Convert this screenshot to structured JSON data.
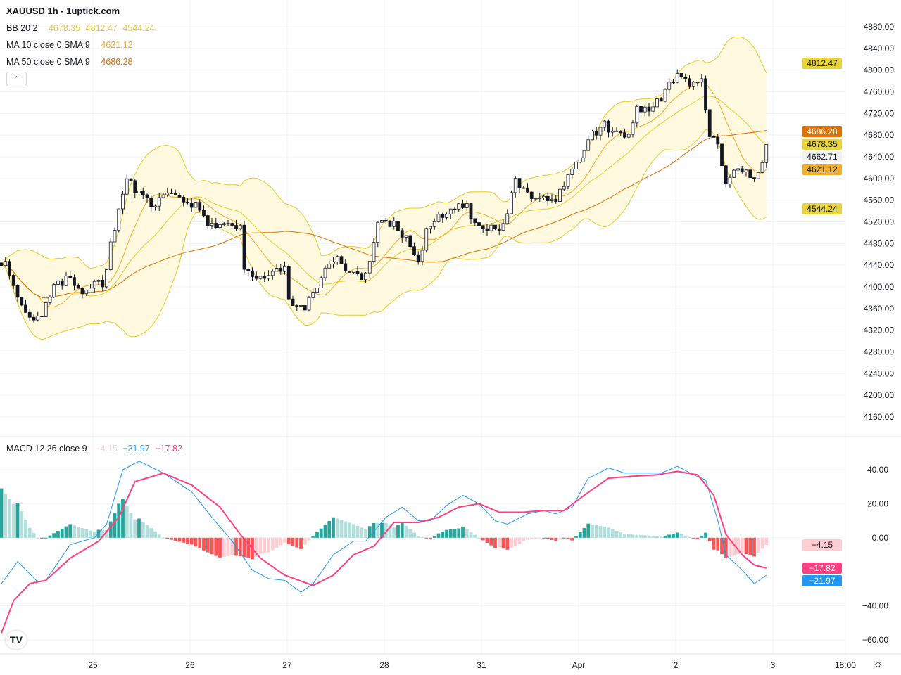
{
  "header": {
    "title": "XAUUSD 1h - 1uptick.com"
  },
  "legend": {
    "bb": {
      "label": "BB 20 2",
      "basis": "4678.35",
      "upper": "4812.47",
      "lower": "4544.24"
    },
    "ma10": {
      "label": "MA 10 close 0 SMA 9",
      "value": "4621.12"
    },
    "ma50": {
      "label": "MA 50 close 0 SMA 9",
      "value": "4686.28"
    },
    "macd": {
      "label": "MACD 12 26 close 9",
      "hist": "−4.15",
      "macd": "−21.97",
      "signal": "−17.82"
    },
    "collapse_icon": "chevron-up-icon"
  },
  "colors": {
    "bb": "#e8c92a",
    "bb_fill": "#fff9e0",
    "ma10": "#f5a623",
    "ma50": "#e07000",
    "macd": "#2196f3",
    "signal": "#ff4081",
    "hist_up_strong": "#26a69a",
    "hist_up_weak": "#b2dfdb",
    "hist_dn_strong": "#ff5252",
    "hist_dn_weak": "#ffcdd2",
    "candle_up": "#ffffff",
    "candle_down": "#131722"
  },
  "price_tags": [
    {
      "value": 4812.47,
      "text": "4812.47",
      "bg": "#e8d33a",
      "fg": "#131722"
    },
    {
      "value": 4686.28,
      "text": "4686.28",
      "bg": "#e07000",
      "fg": "#ffffff"
    },
    {
      "value": 4678.35,
      "text": "4678.35",
      "bg": "#e8d33a",
      "fg": "#131722"
    },
    {
      "value": 4662.71,
      "text": "4662.71",
      "bg": "#f2f2f2",
      "fg": "#131722"
    },
    {
      "value": 4621.12,
      "text": "4621.12",
      "bg": "#f5b02a",
      "fg": "#131722"
    },
    {
      "value": 4544.24,
      "text": "4544.24",
      "bg": "#e8d33a",
      "fg": "#131722"
    }
  ],
  "macd_tags": [
    {
      "value": -4.15,
      "text": "−4.15",
      "bg": "#ffcdd2",
      "fg": "#131722"
    },
    {
      "value": -17.82,
      "text": "−17.82",
      "bg": "#ff4081",
      "fg": "#ffffff"
    },
    {
      "value": -21.97,
      "text": "−21.97",
      "bg": "#2196f3",
      "fg": "#ffffff"
    }
  ],
  "chart_data": [
    {
      "type": "candlestick",
      "title": "XAUUSD 1h",
      "ylim": [
        4160,
        4880
      ],
      "y_ticks": [
        "4880.00",
        "4840.00",
        "4800.00",
        "4760.00",
        "4720.00",
        "4680.00",
        "4640.00",
        "4600.00",
        "4560.00",
        "4520.00",
        "4480.00",
        "4440.00",
        "4400.00",
        "4360.00",
        "4320.00",
        "4280.00",
        "4240.00",
        "4200.00",
        "4160.00"
      ],
      "x_ticks": [
        {
          "bar": 22.6,
          "label": "25"
        },
        {
          "bar": 46.6,
          "label": "26"
        },
        {
          "bar": 70.6,
          "label": "27"
        },
        {
          "bar": 94.6,
          "label": "28"
        },
        {
          "bar": 118.6,
          "label": "31"
        },
        {
          "bar": 142.6,
          "label": "Apr"
        },
        {
          "bar": 166.6,
          "label": "2"
        },
        {
          "bar": 190.6,
          "label": "3"
        },
        {
          "bar": 208.5,
          "label": "18:00"
        }
      ],
      "bars": 190,
      "last_close": 4662.71,
      "close_anchors": [
        [
          0,
          4445
        ],
        [
          1,
          4440
        ],
        [
          3,
          4400
        ],
        [
          6,
          4360
        ],
        [
          8,
          4335
        ],
        [
          10,
          4345
        ],
        [
          13,
          4400
        ],
        [
          17,
          4420
        ],
        [
          19,
          4390
        ],
        [
          23,
          4410
        ],
        [
          25,
          4400
        ],
        [
          27,
          4475
        ],
        [
          29,
          4545
        ],
        [
          31,
          4600
        ],
        [
          34,
          4570
        ],
        [
          37,
          4550
        ],
        [
          42,
          4570
        ],
        [
          45,
          4560
        ],
        [
          49,
          4545
        ],
        [
          51,
          4510
        ],
        [
          56,
          4520
        ],
        [
          59,
          4510
        ],
        [
          60,
          4440
        ],
        [
          63,
          4420
        ],
        [
          66,
          4420
        ],
        [
          70,
          4440
        ],
        [
          71,
          4370
        ],
        [
          75,
          4360
        ],
        [
          77,
          4390
        ],
        [
          80,
          4430
        ],
        [
          83,
          4450
        ],
        [
          86,
          4430
        ],
        [
          89,
          4420
        ],
        [
          91,
          4440
        ],
        [
          93,
          4520
        ],
        [
          97,
          4515
        ],
        [
          100,
          4490
        ],
        [
          103,
          4450
        ],
        [
          105,
          4500
        ],
        [
          108,
          4530
        ],
        [
          111,
          4545
        ],
        [
          115,
          4550
        ],
        [
          116,
          4520
        ],
        [
          120,
          4510
        ],
        [
          124,
          4510
        ],
        [
          127,
          4600
        ],
        [
          130,
          4570
        ],
        [
          134,
          4565
        ],
        [
          137,
          4560
        ],
        [
          140,
          4600
        ],
        [
          143,
          4640
        ],
        [
          146,
          4680
        ],
        [
          149,
          4700
        ],
        [
          151,
          4680
        ],
        [
          155,
          4680
        ],
        [
          157,
          4725
        ],
        [
          161,
          4730
        ],
        [
          164,
          4760
        ],
        [
          167,
          4790
        ],
        [
          170,
          4770
        ],
        [
          173,
          4790
        ],
        [
          175,
          4680
        ],
        [
          177,
          4660
        ],
        [
          179,
          4590
        ],
        [
          182,
          4620
        ],
        [
          184,
          4610
        ],
        [
          187,
          4605
        ],
        [
          189,
          4662.71
        ]
      ],
      "indicators": [
        "BB 20 2",
        "MA 10",
        "MA 50"
      ]
    },
    {
      "type": "line",
      "title": "MACD 12 26 close 9",
      "ylim": [
        -65,
        50
      ],
      "y_ticks": [
        {
          "v": 40,
          "label": "40.00"
        },
        {
          "v": 20,
          "label": "20.00"
        },
        {
          "v": 0,
          "label": "0.00"
        },
        {
          "v": -40,
          "label": "−40.00"
        },
        {
          "v": -60,
          "label": "−60.00"
        }
      ],
      "series": [
        {
          "name": "MACD",
          "anchors": [
            [
              0,
              -27
            ],
            [
              4,
              -14
            ],
            [
              9,
              -26
            ],
            [
              11,
              -25
            ],
            [
              17,
              -4
            ],
            [
              23,
              0
            ],
            [
              26,
              8
            ],
            [
              30,
              40
            ],
            [
              34,
              45
            ],
            [
              40,
              38
            ],
            [
              47,
              27
            ],
            [
              52,
              12
            ],
            [
              57,
              -2
            ],
            [
              62,
              -19
            ],
            [
              66,
              -24
            ],
            [
              70,
              -25
            ],
            [
              74,
              -32
            ],
            [
              77,
              -27
            ],
            [
              82,
              -10
            ],
            [
              87,
              -2
            ],
            [
              90,
              -2
            ],
            [
              95,
              12
            ],
            [
              99,
              18
            ],
            [
              103,
              10
            ],
            [
              106,
              10
            ],
            [
              110,
              19
            ],
            [
              114,
              25
            ],
            [
              118,
              20
            ],
            [
              122,
              10
            ],
            [
              125,
              8
            ],
            [
              130,
              14
            ],
            [
              134,
              16
            ],
            [
              137,
              14
            ],
            [
              141,
              18
            ],
            [
              145,
              35
            ],
            [
              150,
              41
            ],
            [
              154,
              38
            ],
            [
              158,
              38
            ],
            [
              163,
              38
            ],
            [
              167,
              42
            ],
            [
              171,
              37
            ],
            [
              174,
              34
            ],
            [
              177,
              10
            ],
            [
              179,
              -10
            ],
            [
              183,
              -19
            ],
            [
              186,
              -27
            ],
            [
              189,
              -21.97
            ]
          ]
        },
        {
          "name": "Signal",
          "anchors": [
            [
              0,
              -56
            ],
            [
              3,
              -37
            ],
            [
              7,
              -27
            ],
            [
              11,
              -25
            ],
            [
              17,
              -12
            ],
            [
              24,
              -2
            ],
            [
              29,
              12
            ],
            [
              33,
              33
            ],
            [
              40,
              38
            ],
            [
              47,
              31
            ],
            [
              54,
              18
            ],
            [
              59,
              2
            ],
            [
              64,
              -12
            ],
            [
              70,
              -22
            ],
            [
              77,
              -28
            ],
            [
              82,
              -22
            ],
            [
              87,
              -10
            ],
            [
              92,
              -5
            ],
            [
              97,
              9
            ],
            [
              103,
              9
            ],
            [
              108,
              12
            ],
            [
              113,
              18
            ],
            [
              118,
              20
            ],
            [
              123,
              15
            ],
            [
              129,
              15
            ],
            [
              134,
              16
            ],
            [
              139,
              16
            ],
            [
              144,
              25
            ],
            [
              150,
              35
            ],
            [
              155,
              36
            ],
            [
              162,
              37
            ],
            [
              167,
              39
            ],
            [
              172,
              37
            ],
            [
              176,
              25
            ],
            [
              179,
              2
            ],
            [
              183,
              -10
            ],
            [
              186,
              -16
            ],
            [
              189,
              -17.82
            ]
          ]
        },
        {
          "name": "Histogram",
          "derived": "MACD - Signal",
          "last": -4.15
        }
      ]
    }
  ]
}
